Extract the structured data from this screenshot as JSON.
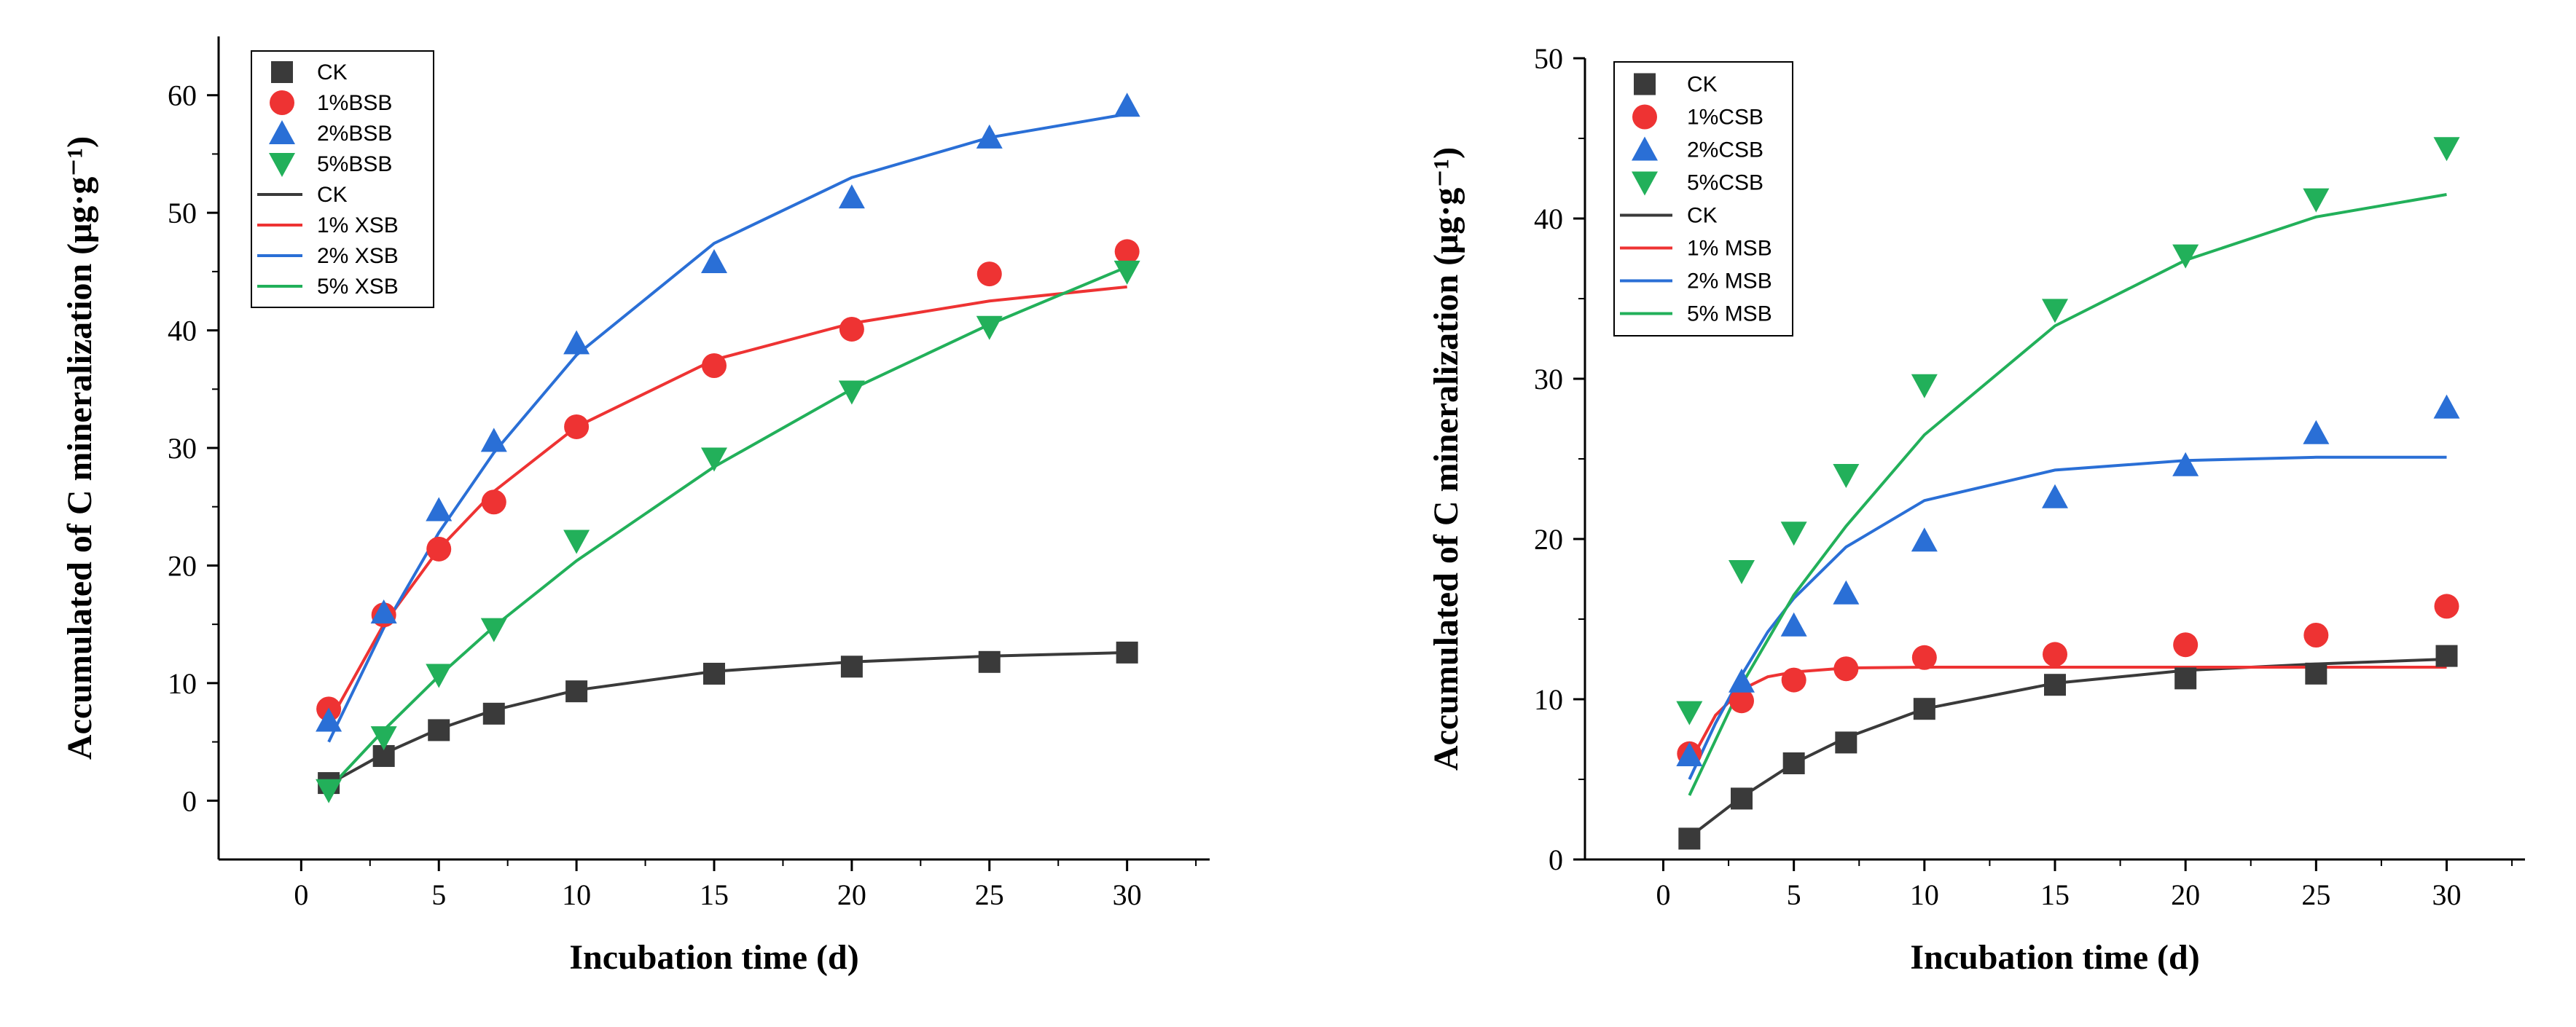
{
  "chart_data": [
    {
      "type": "scatter",
      "xlabel": "Incubation time  (d)",
      "ylabel": "Accumulated of C mineralization (μg·g⁻¹)",
      "xlim": [
        -3,
        33
      ],
      "ylim": [
        -5,
        65
      ],
      "xticks": [
        0,
        5,
        10,
        15,
        20,
        25,
        30
      ],
      "yticks": [
        0,
        10,
        20,
        30,
        40,
        50,
        60
      ],
      "legend_position": "top-left",
      "x": [
        1,
        3,
        5,
        7,
        10,
        15,
        20,
        25,
        30
      ],
      "series": [
        {
          "name": "CK",
          "marker": "square",
          "color": "#3a3a3a",
          "values": [
            1.5,
            3.8,
            6.0,
            7.4,
            9.3,
            10.8,
            11.4,
            11.8,
            12.6
          ]
        },
        {
          "name": "1%BSB",
          "marker": "circle",
          "color": "#ee3333",
          "values": [
            7.8,
            15.8,
            21.4,
            25.4,
            31.8,
            37.0,
            40.1,
            44.8,
            46.7
          ]
        },
        {
          "name": "2%BSB",
          "marker": "triangle-up",
          "color": "#2a6fd6",
          "values": [
            6.8,
            16.0,
            24.7,
            30.6,
            38.9,
            45.8,
            51.3,
            56.4,
            59.1
          ]
        },
        {
          "name": "5%BSB",
          "marker": "triangle-down",
          "color": "#22b05a",
          "values": [
            0.9,
            5.4,
            10.7,
            14.6,
            22.1,
            29.1,
            34.8,
            40.3,
            45.0
          ]
        }
      ],
      "fits": [
        {
          "name": "CK",
          "color": "#3a3a3a",
          "x": [
            1,
            3,
            5,
            7,
            10,
            15,
            20,
            25,
            30
          ],
          "y": [
            1.4,
            4.0,
            6.1,
            7.7,
            9.4,
            11.0,
            11.8,
            12.3,
            12.6
          ]
        },
        {
          "name": "1% XSB",
          "color": "#ee3333",
          "x": [
            1,
            3,
            5,
            7,
            10,
            15,
            20,
            25,
            30
          ],
          "y": [
            6.6,
            15.0,
            21.4,
            26.3,
            31.8,
            37.5,
            40.6,
            42.5,
            43.7
          ]
        },
        {
          "name": "2% XSB",
          "color": "#2a6fd6",
          "x": [
            1,
            3,
            5,
            7,
            10,
            15,
            20,
            25,
            30
          ],
          "y": [
            5.0,
            14.7,
            22.8,
            29.6,
            37.9,
            47.4,
            53.0,
            56.4,
            58.4
          ]
        },
        {
          "name": "5% XSB",
          "color": "#22b05a",
          "x": [
            1,
            3,
            5,
            7,
            10,
            15,
            20,
            25,
            30
          ],
          "y": [
            1.0,
            6.0,
            10.6,
            14.8,
            20.4,
            28.4,
            35.0,
            40.5,
            45.4
          ]
        }
      ]
    },
    {
      "type": "scatter",
      "xlabel": "Incubation time  (d)",
      "ylabel": "Accumulated of C mineralization (μg·g⁻¹)",
      "xlim": [
        -3,
        33
      ],
      "ylim": [
        0,
        50
      ],
      "xticks": [
        0,
        5,
        10,
        15,
        20,
        25,
        30
      ],
      "yticks": [
        0,
        10,
        20,
        30,
        40,
        50
      ],
      "legend_position": "top-left",
      "x": [
        1,
        3,
        5,
        7,
        10,
        15,
        20,
        25,
        30
      ],
      "series": [
        {
          "name": "CK",
          "marker": "square",
          "color": "#3a3a3a",
          "values": [
            1.3,
            3.8,
            6.0,
            7.3,
            9.4,
            10.9,
            11.3,
            11.6,
            12.7
          ]
        },
        {
          "name": "1%CSB",
          "marker": "circle",
          "color": "#ee3333",
          "values": [
            6.6,
            9.9,
            11.2,
            11.9,
            12.6,
            12.8,
            13.4,
            14.0,
            15.8
          ]
        },
        {
          "name": "2%CSB",
          "marker": "triangle-up",
          "color": "#2a6fd6",
          "values": [
            6.5,
            11.1,
            14.6,
            16.6,
            19.9,
            22.6,
            24.6,
            26.6,
            28.2
          ]
        },
        {
          "name": "5%CSB",
          "marker": "triangle-down",
          "color": "#22b05a",
          "values": [
            9.2,
            18.0,
            20.4,
            24.0,
            29.6,
            34.3,
            37.7,
            41.2,
            44.4
          ]
        }
      ],
      "fits": [
        {
          "name": "CK",
          "color": "#3a3a3a",
          "x": [
            1,
            3,
            5,
            7,
            10,
            15,
            20,
            25,
            30
          ],
          "y": [
            1.4,
            3.9,
            6.0,
            7.6,
            9.4,
            11.0,
            11.8,
            12.2,
            12.5
          ]
        },
        {
          "name": "1% MSB",
          "color": "#ee3333",
          "x": [
            1,
            2,
            3,
            4,
            5,
            7,
            10,
            15,
            20,
            25,
            30
          ],
          "y": [
            6.0,
            9.0,
            10.6,
            11.4,
            11.7,
            11.95,
            12.0,
            12.0,
            12.0,
            12.0,
            12.0
          ]
        },
        {
          "name": "2% MSB",
          "color": "#2a6fd6",
          "x": [
            1,
            2,
            3,
            4,
            5,
            7,
            10,
            15,
            20,
            25,
            30
          ],
          "y": [
            5.0,
            8.5,
            11.5,
            14.2,
            16.3,
            19.5,
            22.4,
            24.3,
            24.9,
            25.1,
            25.1
          ]
        },
        {
          "name": "5% MSB",
          "color": "#22b05a",
          "x": [
            1,
            3,
            5,
            7,
            10,
            15,
            20,
            25,
            30
          ],
          "y": [
            4.0,
            10.9,
            16.5,
            20.8,
            26.5,
            33.3,
            37.4,
            40.1,
            41.5
          ]
        }
      ]
    }
  ]
}
